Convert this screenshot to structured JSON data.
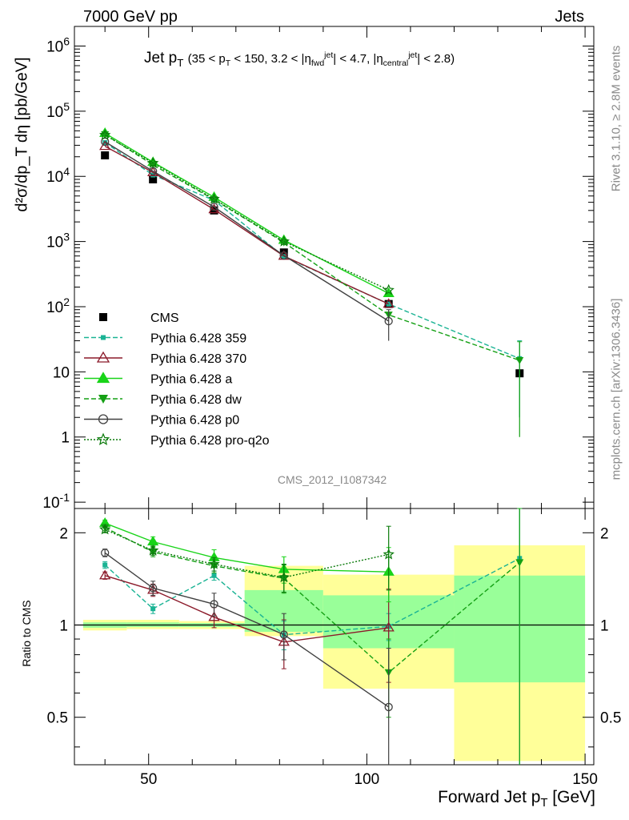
{
  "header": {
    "left": "7000 GeV pp",
    "right": "Jets"
  },
  "side_text": {
    "top": "Rivet 3.1.10, ≥ 2.8M events",
    "bottom": "mcplots.cern.ch [arXiv:1306.3436]"
  },
  "analysis_id": "CMS_2012_I1087342",
  "title": {
    "main": "Jet p",
    "main_sub": "T",
    "range": "(35 < p",
    "range_sub": "T",
    "range2": " < 150, 3.2 < |η",
    "eta_fwd_sup": "jet",
    "eta_fwd_sub": "fwd",
    "range3": "| < 4.7, |η",
    "eta_c_sup": "jet",
    "eta_c_sub": "central",
    "range4": "| < 2.8)"
  },
  "axes": {
    "ylabel_top": "d²σ/dp_T dη [pb/GeV]",
    "ylabel_bottom": "Ratio to CMS",
    "xlabel": "Forward Jet p",
    "xlabel_sub": "T",
    "xlabel_unit": "[GeV]"
  },
  "colors": {
    "cms": "#000000",
    "p359": "#1ab394",
    "p370": "#8b1a2a",
    "pa": "#19d419",
    "pdw": "#14a014",
    "pp0": "#404040",
    "pq2o": "#0a7a0a",
    "band_yellow": "#ffff99",
    "band_green": "#99ff99"
  },
  "chart_data": [
    {
      "type": "scatter",
      "panel": "main",
      "y_scale": "log",
      "xlim": [
        33,
        152
      ],
      "ylim": [
        0.08,
        2000000
      ],
      "y_tick_labels": [
        "10^-1",
        "1",
        "10",
        "10^2",
        "10^3",
        "10^4",
        "10^5",
        "10^6"
      ],
      "x_ticks": [
        50,
        100,
        150
      ],
      "x": [
        40,
        51,
        65,
        81,
        105,
        135
      ],
      "x_bin_edges": [
        35,
        45,
        57,
        72,
        90,
        120,
        150
      ],
      "legend_position": "left-middle",
      "series": [
        {
          "name": "CMS",
          "key": "cms",
          "marker": "square",
          "line": "none",
          "values": [
            21000,
            9000,
            3000,
            680,
            110,
            9.5
          ]
        },
        {
          "name": "Pythia 6.428 359",
          "key": "p359",
          "marker": "square-small",
          "line": "dashed",
          "values": [
            33000,
            10500,
            4300,
            590,
            110,
            16
          ],
          "err": [
            0,
            0,
            0,
            0,
            0,
            14
          ]
        },
        {
          "name": "Pythia 6.428 370",
          "key": "p370",
          "marker": "triangle-open",
          "line": "solid",
          "values": [
            29000,
            11500,
            3100,
            600,
            110,
            null
          ]
        },
        {
          "name": "Pythia 6.428 a",
          "key": "pa",
          "marker": "triangle",
          "line": "solid",
          "values": [
            46000,
            16500,
            4800,
            1050,
            160,
            null
          ]
        },
        {
          "name": "Pythia 6.428 dw",
          "key": "pdw",
          "marker": "triangle-down",
          "line": "dashed",
          "values": [
            44000,
            15000,
            4400,
            970,
            75,
            15
          ],
          "err": [
            0,
            0,
            0,
            0,
            0,
            14
          ]
        },
        {
          "name": "Pythia 6.428 p0",
          "key": "pp0",
          "marker": "circle-open",
          "line": "solid",
          "values": [
            34000,
            12000,
            3400,
            610,
            60,
            null
          ],
          "err": [
            0,
            0,
            0,
            0,
            30,
            0
          ]
        },
        {
          "name": "Pythia 6.428 pro-q2o",
          "key": "pq2o",
          "marker": "star-open",
          "line": "dotted",
          "values": [
            43000,
            16000,
            4500,
            1000,
            180,
            null
          ]
        }
      ]
    },
    {
      "type": "scatter",
      "panel": "ratio",
      "y_scale": "log",
      "xlim": [
        33,
        152
      ],
      "ylim": [
        0.35,
        2.4
      ],
      "y_ticks": [
        0.5,
        1,
        2
      ],
      "y_tick_labels": [
        "0.5",
        "1",
        "2"
      ],
      "x_ticks": [
        50,
        100,
        150
      ],
      "x": [
        40,
        51,
        65,
        81,
        105,
        135
      ],
      "bands": [
        {
          "x0": 35,
          "x1": 45,
          "y_lo": 0.96,
          "y_hi": 1.04,
          "g_lo": 0.98,
          "g_hi": 1.02
        },
        {
          "x0": 45,
          "x1": 57,
          "y_lo": 0.97,
          "y_hi": 1.04,
          "g_lo": 0.985,
          "g_hi": 1.02
        },
        {
          "x0": 57,
          "x1": 72,
          "y_lo": 0.97,
          "y_hi": 1.03,
          "g_lo": 0.985,
          "g_hi": 1.015
        },
        {
          "x0": 72,
          "x1": 90,
          "y_lo": 0.92,
          "y_hi": 1.56,
          "g_lo": 0.95,
          "g_hi": 1.3
        },
        {
          "x0": 90,
          "x1": 120,
          "y_lo": 0.62,
          "y_hi": 1.46,
          "g_lo": 0.84,
          "g_hi": 1.25
        },
        {
          "x0": 120,
          "x1": 150,
          "y_lo": 0.36,
          "y_hi": 1.82,
          "g_lo": 0.65,
          "g_hi": 1.45
        }
      ],
      "series": [
        {
          "name": "Pythia 6.428 359",
          "key": "p359",
          "marker": "square-small",
          "line": "dashed",
          "values": [
            1.57,
            1.13,
            1.45,
            0.93,
            0.99,
            1.65
          ],
          "err": [
            0.04,
            0.04,
            0.05,
            0.1,
            0.1,
            1.4
          ]
        },
        {
          "name": "Pythia 6.428 370",
          "key": "p370",
          "marker": "triangle-open",
          "line": "solid",
          "values": [
            1.45,
            1.3,
            1.06,
            0.88,
            0.98,
            null
          ],
          "err": [
            0.04,
            0.06,
            0.08,
            0.16,
            0.33,
            0
          ]
        },
        {
          "name": "Pythia 6.428 a",
          "key": "pa",
          "marker": "triangle",
          "line": "solid",
          "values": [
            2.15,
            1.87,
            1.66,
            1.52,
            1.49,
            null
          ],
          "err": [
            0.05,
            0.07,
            0.1,
            0.15,
            0.3,
            0
          ]
        },
        {
          "name": "Pythia 6.428 dw",
          "key": "pdw",
          "marker": "triangle-down",
          "line": "dashed",
          "values": [
            2.08,
            1.73,
            1.56,
            1.42,
            0.7,
            1.6
          ],
          "err": [
            0.05,
            0.06,
            0.08,
            0.15,
            0.2,
            1.5
          ]
        },
        {
          "name": "Pythia 6.428 p0",
          "key": "pp0",
          "marker": "circle-open",
          "line": "solid",
          "values": [
            1.72,
            1.32,
            1.17,
            0.93,
            0.54,
            null
          ],
          "err": [
            0.05,
            0.07,
            0.1,
            0.16,
            0.3,
            0
          ]
        },
        {
          "name": "Pythia 6.428 pro-q2o",
          "key": "pq2o",
          "marker": "star-open",
          "line": "dotted",
          "values": [
            2.05,
            1.75,
            1.58,
            1.43,
            1.7,
            null
          ],
          "err": [
            0.05,
            0.06,
            0.08,
            0.15,
            0.4,
            0
          ]
        }
      ]
    }
  ]
}
